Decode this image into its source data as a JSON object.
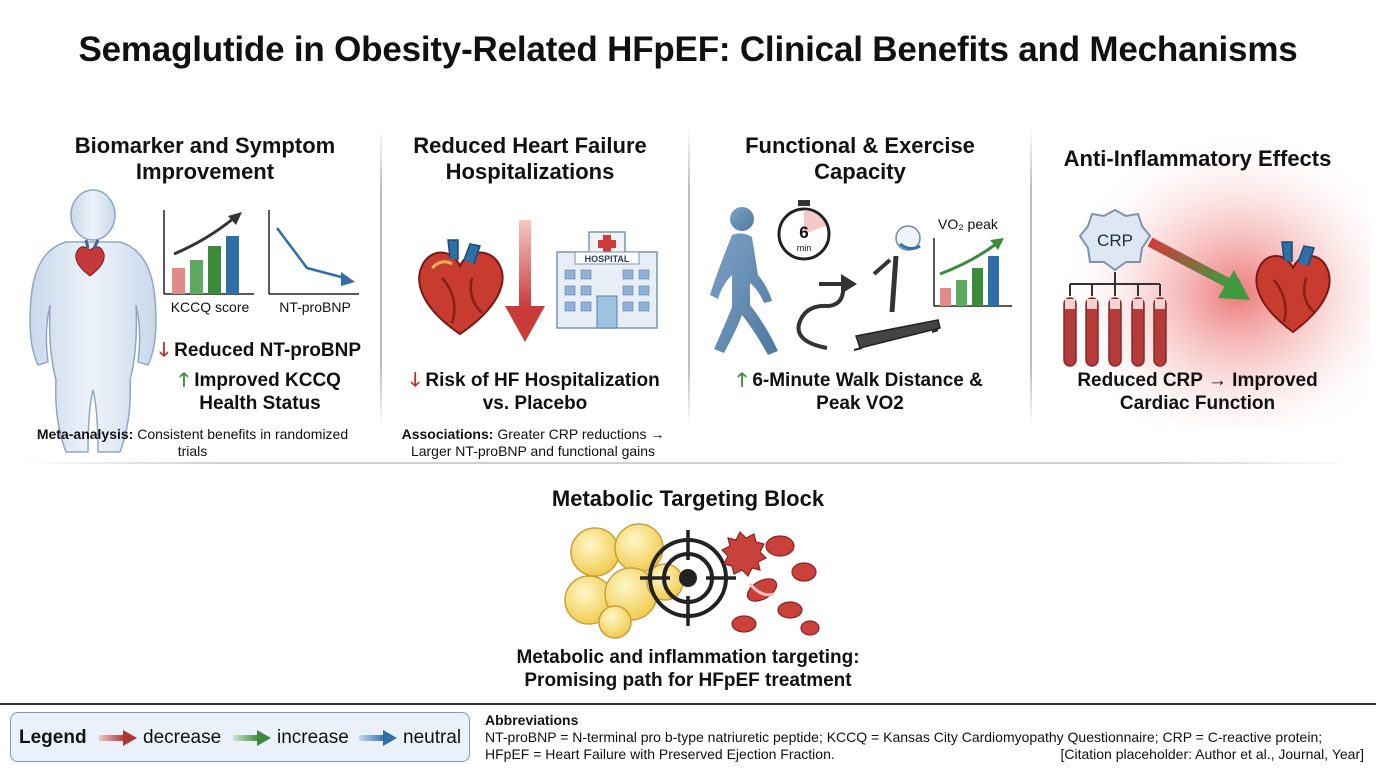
{
  "title": "Semaglutide in Obesity-Related HFpEF: Clinical Benefits and Mechanisms",
  "panels": [
    {
      "title_line1": "Biomarker and Symptom",
      "title_line2": "Improvement",
      "chart1_label": "KCCQ score",
      "chart2_label": "NT-proBNP",
      "stmt1": "Reduced NT-proBNP",
      "stmt2_line1": "Improved KCCQ",
      "stmt2_line2": "Health Status",
      "note_bold": "Meta-analysis:",
      "note_line1": " Consistent benefits in randomized",
      "note_line2": "trials"
    },
    {
      "title_line1": "Reduced Heart Failure",
      "title_line2": "Hospitalizations",
      "hospital_sign": "HOSPITAL",
      "stmt_line1": "Risk of HF Hospitalization",
      "stmt_line2": "vs. Placebo",
      "note_bold": "Associations:",
      "note_line1": " Greater CRP reductions →",
      "note_line2": "Larger NT-proBNP and functional gains"
    },
    {
      "title_line1": "Functional & Exercise",
      "title_line2": "Capacity",
      "timer_number": "6",
      "timer_unit": "min",
      "vo2_label": "VO₂ peak",
      "stmt_line1": "6-Minute Walk Distance &",
      "stmt_line2": "Peak VO2"
    },
    {
      "title": "Anti-Inflammatory Effects",
      "crp_label": "CRP",
      "stmt_line1": "Reduced CRP → Improved",
      "stmt_line2": "Cardiac Function"
    }
  ],
  "metabolic": {
    "title": "Metabolic Targeting Block",
    "stmt_line1": "Metabolic and inflammation targeting:",
    "stmt_line2": "Promising path for HFpEF treatment"
  },
  "legend": {
    "title": "Legend",
    "items": [
      {
        "label": "decrease",
        "color": "#b03535"
      },
      {
        "label": "increase",
        "color": "#3d8a3d"
      },
      {
        "label": "neutral",
        "color": "#2f6fa8"
      }
    ]
  },
  "abbreviations": {
    "title": "Abbreviations",
    "line1": "NT-proBNP = N-terminal pro b-type natriuretic peptide; KCCQ = Kansas City Cardiomyopathy Questionnaire; CRP = C-reactive protein;",
    "line2": "HFpEF = Heart Failure with Preserved Ejection Fraction.",
    "citation": "[Citation placeholder: Author et al., Journal, Year]"
  },
  "colors": {
    "decrease": "#b03535",
    "increase": "#3d8a3d",
    "neutral": "#2f6fa8"
  },
  "icons": [
    "body-silhouette-icon",
    "heart-icon",
    "hospital-icon",
    "walking-person-icon",
    "stopwatch-icon",
    "treadmill-icon",
    "crp-molecule-icon",
    "blood-tubes-icon",
    "fat-cells-icon",
    "target-icon",
    "inflammation-cells-icon"
  ]
}
